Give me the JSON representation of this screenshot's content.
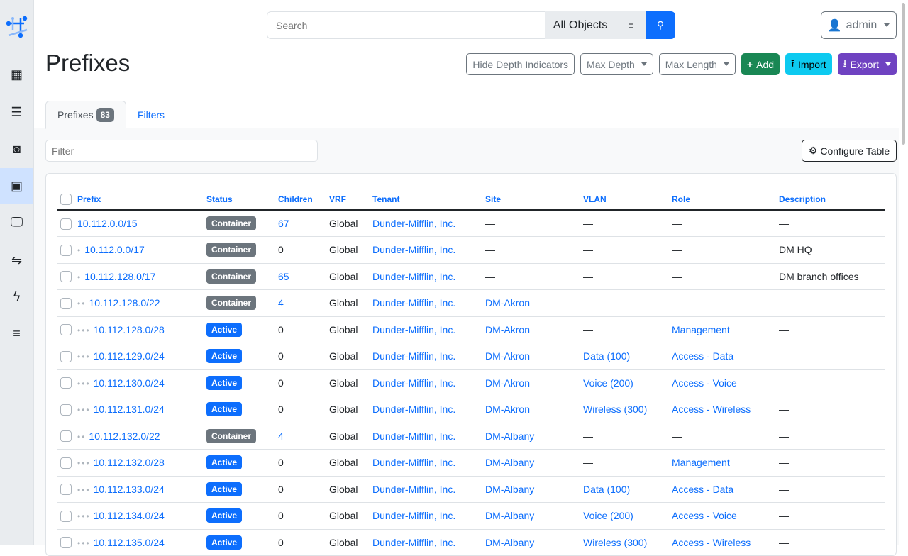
{
  "nav": {
    "items": [
      "organization",
      "devices",
      "connections",
      "ipam",
      "virtualization",
      "circuits",
      "power",
      "provisioning"
    ],
    "active": "ipam"
  },
  "search": {
    "placeholder": "Search",
    "scope": "All Objects"
  },
  "user": {
    "name": "admin"
  },
  "page": {
    "title": "Prefixes"
  },
  "actions": {
    "hide_depth": "Hide Depth Indicators",
    "max_depth": "Max Depth",
    "max_length": "Max Length",
    "add": "Add",
    "import": "Import",
    "export": "Export"
  },
  "tabs": [
    {
      "label": "Prefixes",
      "count": "83"
    },
    {
      "label": "Filters"
    }
  ],
  "filter": {
    "placeholder": "Filter"
  },
  "configure": "Configure Table",
  "colors": {
    "container": "#6c757d",
    "active": "#0d6efd",
    "add": "#198754",
    "import": "#0dcaf0",
    "export": "#6f42c1"
  },
  "table": {
    "headers": [
      "Prefix",
      "Status",
      "Children",
      "VRF",
      "Tenant",
      "Site",
      "VLAN",
      "Role",
      "Description"
    ],
    "rows": [
      {
        "depth": 0,
        "prefix": "10.112.0.0/15",
        "status": "Container",
        "children": "67",
        "vrf": "Global",
        "tenant": "Dunder-Mifflin, Inc.",
        "site": "—",
        "vlan": "—",
        "role": "—",
        "description": "—"
      },
      {
        "depth": 1,
        "prefix": "10.112.0.0/17",
        "status": "Container",
        "children": "0",
        "vrf": "Global",
        "tenant": "Dunder-Mifflin, Inc.",
        "site": "—",
        "vlan": "—",
        "role": "—",
        "description": "DM HQ"
      },
      {
        "depth": 1,
        "prefix": "10.112.128.0/17",
        "status": "Container",
        "children": "65",
        "vrf": "Global",
        "tenant": "Dunder-Mifflin, Inc.",
        "site": "—",
        "vlan": "—",
        "role": "—",
        "description": "DM branch offices"
      },
      {
        "depth": 2,
        "prefix": "10.112.128.0/22",
        "status": "Container",
        "children": "4",
        "vrf": "Global",
        "tenant": "Dunder-Mifflin, Inc.",
        "site": "DM-Akron",
        "vlan": "—",
        "role": "—",
        "description": "—"
      },
      {
        "depth": 3,
        "prefix": "10.112.128.0/28",
        "status": "Active",
        "children": "0",
        "vrf": "Global",
        "tenant": "Dunder-Mifflin, Inc.",
        "site": "DM-Akron",
        "vlan": "—",
        "role": "Management",
        "description": "—"
      },
      {
        "depth": 3,
        "prefix": "10.112.129.0/24",
        "status": "Active",
        "children": "0",
        "vrf": "Global",
        "tenant": "Dunder-Mifflin, Inc.",
        "site": "DM-Akron",
        "vlan": "Data (100)",
        "role": "Access - Data",
        "description": "—"
      },
      {
        "depth": 3,
        "prefix": "10.112.130.0/24",
        "status": "Active",
        "children": "0",
        "vrf": "Global",
        "tenant": "Dunder-Mifflin, Inc.",
        "site": "DM-Akron",
        "vlan": "Voice (200)",
        "role": "Access - Voice",
        "description": "—"
      },
      {
        "depth": 3,
        "prefix": "10.112.131.0/24",
        "status": "Active",
        "children": "0",
        "vrf": "Global",
        "tenant": "Dunder-Mifflin, Inc.",
        "site": "DM-Akron",
        "vlan": "Wireless (300)",
        "role": "Access - Wireless",
        "description": "—"
      },
      {
        "depth": 2,
        "prefix": "10.112.132.0/22",
        "status": "Container",
        "children": "4",
        "vrf": "Global",
        "tenant": "Dunder-Mifflin, Inc.",
        "site": "DM-Albany",
        "vlan": "—",
        "role": "—",
        "description": "—"
      },
      {
        "depth": 3,
        "prefix": "10.112.132.0/28",
        "status": "Active",
        "children": "0",
        "vrf": "Global",
        "tenant": "Dunder-Mifflin, Inc.",
        "site": "DM-Albany",
        "vlan": "—",
        "role": "Management",
        "description": "—"
      },
      {
        "depth": 3,
        "prefix": "10.112.133.0/24",
        "status": "Active",
        "children": "0",
        "vrf": "Global",
        "tenant": "Dunder-Mifflin, Inc.",
        "site": "DM-Albany",
        "vlan": "Data (100)",
        "role": "Access - Data",
        "description": "—"
      },
      {
        "depth": 3,
        "prefix": "10.112.134.0/24",
        "status": "Active",
        "children": "0",
        "vrf": "Global",
        "tenant": "Dunder-Mifflin, Inc.",
        "site": "DM-Albany",
        "vlan": "Voice (200)",
        "role": "Access - Voice",
        "description": "—"
      },
      {
        "depth": 3,
        "prefix": "10.112.135.0/24",
        "status": "Active",
        "children": "0",
        "vrf": "Global",
        "tenant": "Dunder-Mifflin, Inc.",
        "site": "DM-Albany",
        "vlan": "Wireless (300)",
        "role": "Access - Wireless",
        "description": "—"
      }
    ]
  }
}
